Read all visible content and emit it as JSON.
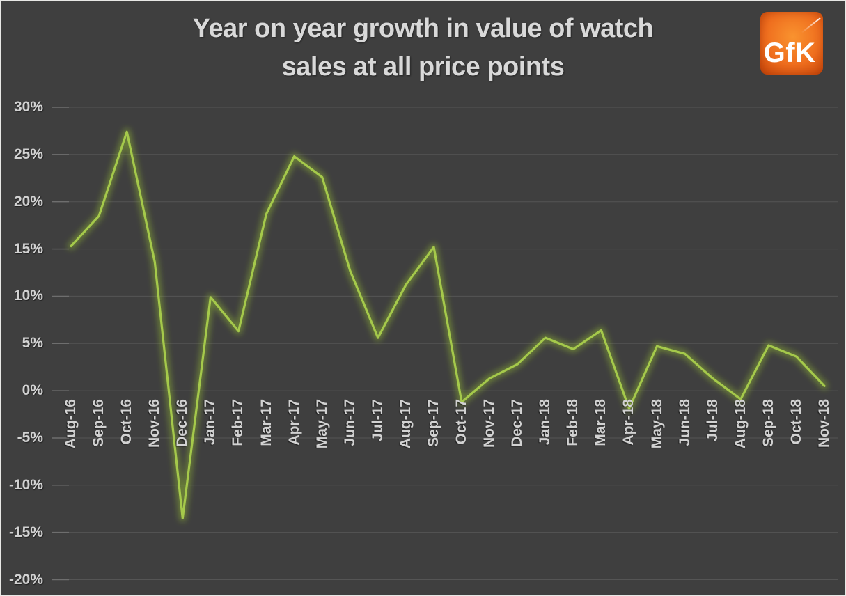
{
  "title": {
    "lines": [
      "Year on year growth in value of watch",
      "sales at all price points"
    ]
  },
  "logo": {
    "text": "GfK",
    "color": "#ef6e1e"
  },
  "chart_data": {
    "type": "line",
    "title": "Year on year growth in value of watch sales at all price points",
    "series_name": "Year on year growth in value of watch sales",
    "categories": [
      "Aug-16",
      "Sep-16",
      "Oct-16",
      "Nov-16",
      "Dec-16",
      "Jan-17",
      "Feb-17",
      "Mar-17",
      "Apr-17",
      "May-17",
      "Jun-17",
      "Jul-17",
      "Aug-17",
      "Sep-17",
      "Oct-17",
      "Nov-17",
      "Dec-17",
      "Jan-18",
      "Feb-18",
      "Mar-18",
      "Apr-18",
      "May-18",
      "Jun-18",
      "Jul-18",
      "Aug-18",
      "Sep-18",
      "Oct-18",
      "Nov-18"
    ],
    "values": [
      15.3,
      18.5,
      27.4,
      13.6,
      -13.5,
      9.9,
      6.3,
      18.7,
      24.8,
      22.6,
      12.7,
      5.6,
      11.2,
      15.2,
      -1.2,
      1.3,
      2.8,
      5.6,
      4.4,
      6.4,
      -1.9,
      4.7,
      3.9,
      1.3,
      -0.9,
      4.8,
      3.6,
      0.5
    ],
    "xlabel": "",
    "ylabel": "",
    "ylim": [
      -20,
      30
    ],
    "y_tick_step": 5,
    "y_tick_labels": [
      "30%",
      "25%",
      "20%",
      "15%",
      "10%",
      "5%",
      "0%",
      "-5%",
      "-10%",
      "-15%",
      "-20%"
    ],
    "grid": true,
    "legend": false,
    "colors": {
      "background": "#3f3f3f",
      "grid": "#555555",
      "tick": "#6e6e6e",
      "line_core": "#a5c94b",
      "line_glow": "#94bc33",
      "label": "#d2d2d2",
      "title": "#d9d9d9"
    }
  }
}
